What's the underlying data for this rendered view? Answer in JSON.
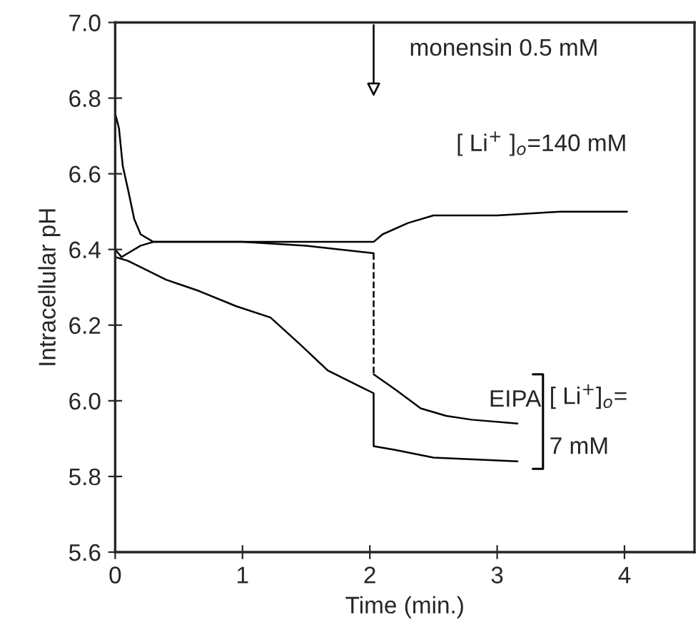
{
  "chart_data": {
    "type": "line",
    "xlabel": "Time (min.)",
    "ylabel": "Intracellular pH",
    "xlim": [
      0,
      4.55
    ],
    "xticks": [
      0,
      1,
      2,
      3,
      4
    ],
    "ylim": [
      5.6,
      7.0
    ],
    "yticks": [
      {
        "value": 5.6,
        "label": "5.6"
      },
      {
        "value": 5.8,
        "label": "5.8"
      },
      {
        "value": 6.0,
        "label": "6.0"
      },
      {
        "value": 6.2,
        "label": "6.2"
      },
      {
        "value": 6.4,
        "label": "6.4"
      },
      {
        "value": 6.6,
        "label": "6.6"
      },
      {
        "value": 6.8,
        "label": "6.8"
      },
      {
        "value": 7.0,
        "label": "7.0"
      }
    ],
    "grid": false,
    "legend": false,
    "marker": "none",
    "line_style": "solid",
    "series": [
      {
        "name": "[ Li$^{+}$ ]$_{o}$=140 mM",
        "color": "#000000",
        "x": [
          0,
          0.03,
          0.06,
          0.1,
          0.15,
          0.2,
          0.3,
          0.6,
          1.0,
          1.5,
          2.03,
          2.1,
          2.3,
          2.5,
          3.0,
          3.5,
          4.02
        ],
        "values": [
          6.76,
          6.72,
          6.62,
          6.56,
          6.48,
          6.44,
          6.42,
          6.42,
          6.42,
          6.42,
          6.42,
          6.44,
          6.47,
          6.49,
          6.49,
          6.5,
          6.5
        ]
      },
      {
        "color": "#000000",
        "x": [
          0,
          0.05,
          0.1,
          0.2,
          0.3,
          1.0,
          1.5,
          2.03
        ],
        "values": [
          6.4,
          6.38,
          6.39,
          6.41,
          6.42,
          6.42,
          6.41,
          6.39
        ]
      },
      {
        "color": "#000000",
        "line_style": "dashed",
        "x": [
          2.03,
          2.03
        ],
        "values": [
          6.39,
          6.07
        ]
      },
      {
        "name": "EIPA",
        "color": "#000000",
        "x": [
          2.03,
          2.2,
          2.4,
          2.6,
          2.8,
          3.16
        ],
        "values": [
          6.07,
          6.03,
          5.98,
          5.96,
          5.95,
          5.94
        ]
      },
      {
        "color": "#000000",
        "x": [
          0,
          0.1,
          0.4,
          0.66,
          0.95,
          1.22,
          1.45,
          1.67,
          1.85,
          2.03,
          2.03,
          2.2,
          2.5,
          3.16
        ],
        "values": [
          6.38,
          6.37,
          6.32,
          6.29,
          6.25,
          6.22,
          6.15,
          6.08,
          6.05,
          6.02,
          5.88,
          5.87,
          5.85,
          5.84
        ]
      }
    ],
    "annotations": [
      "monensin 0.5 mM",
      "[ Li$^{+}$]$_{o}$=\n7 mM"
    ]
  }
}
